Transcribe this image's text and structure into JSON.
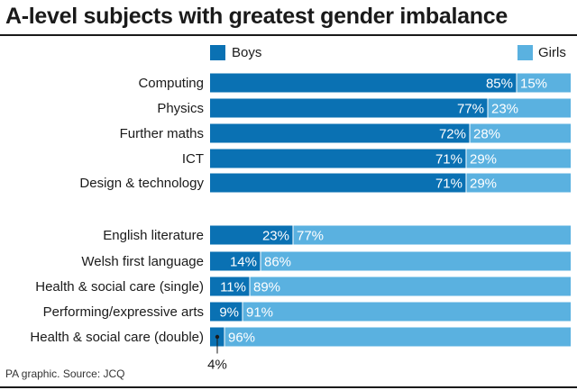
{
  "chart_data": {
    "type": "bar",
    "stacked": true,
    "orientation": "horizontal",
    "title": "A-level subjects with greatest gender imbalance",
    "source": "PA graphic. Source: JCQ",
    "value_suffix": "%",
    "colors": {
      "boys": "#0a71b3",
      "girls": "#5ab1e0"
    },
    "categories": [
      "Computing",
      "Physics",
      "Further maths",
      "ICT",
      "Design & technology",
      "English literature",
      "Welsh first language",
      "Health & social care (single)",
      "Performing/expressive arts",
      "Health & social care (double)"
    ],
    "series": [
      {
        "name": "Boys",
        "values": [
          85,
          77,
          72,
          71,
          71,
          23,
          14,
          11,
          9,
          4
        ]
      },
      {
        "name": "Girls",
        "values": [
          15,
          23,
          28,
          29,
          29,
          77,
          86,
          89,
          91,
          96
        ]
      }
    ],
    "xlim": [
      0,
      100
    ],
    "legend_position": "top",
    "annotations": [
      {
        "category": "Health & social care (double)",
        "series": "Boys",
        "text": "4%"
      }
    ]
  }
}
